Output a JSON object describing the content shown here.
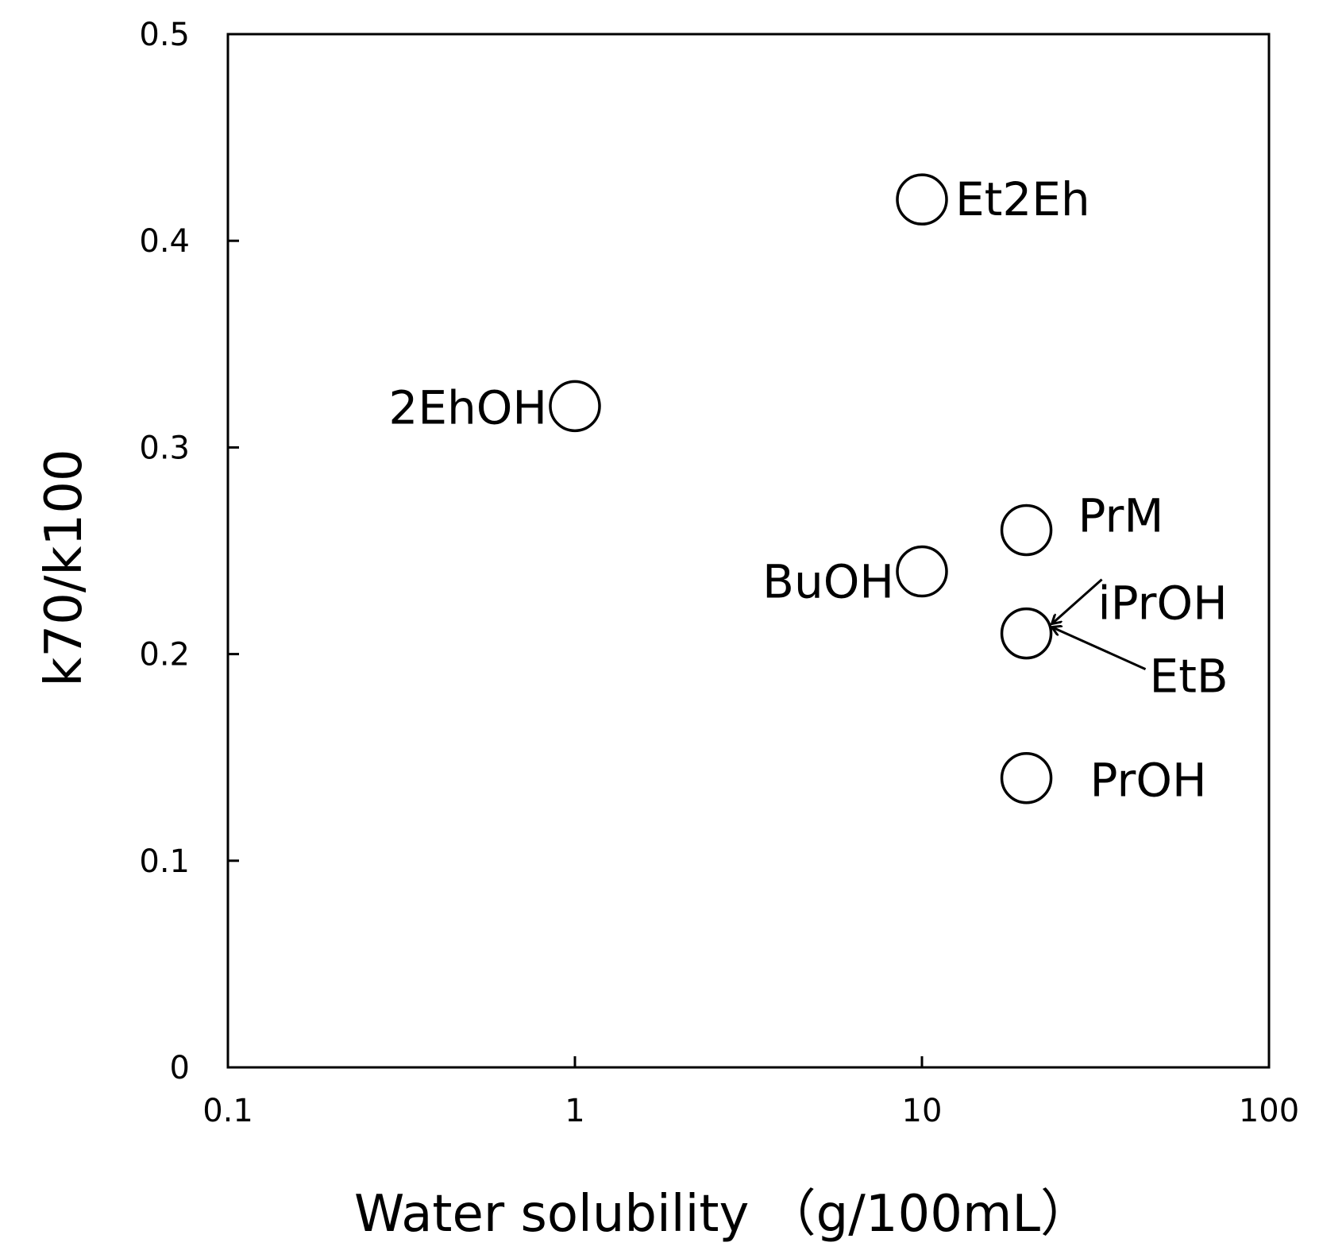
{
  "chart_data": {
    "type": "scatter",
    "xlabel": "Water solubility （g/100mL）",
    "ylabel": "k70/k100",
    "x_scale": "log",
    "xlim": [
      0.1,
      100
    ],
    "ylim": [
      0,
      0.5
    ],
    "x_ticks": [
      "0.1",
      "1",
      "10",
      "100"
    ],
    "y_ticks": [
      "0",
      "0.1",
      "0.2",
      "0.3",
      "0.4",
      "0.5"
    ],
    "grid": false,
    "legend": "none",
    "marker": "open-circle",
    "points": [
      {
        "label": "Et2Eh",
        "x": 10,
        "y": 0.42
      },
      {
        "label": "2EhOH",
        "x": 1,
        "y": 0.32
      },
      {
        "label": "PrM",
        "x": 20,
        "y": 0.26
      },
      {
        "label": "BuOH",
        "x": 10,
        "y": 0.24
      },
      {
        "label": "iPrOH",
        "x": 20,
        "y": 0.21
      },
      {
        "label": "EtB",
        "x": 20,
        "y": 0.21
      },
      {
        "label": "PrOH",
        "x": 20,
        "y": 0.14
      }
    ]
  }
}
